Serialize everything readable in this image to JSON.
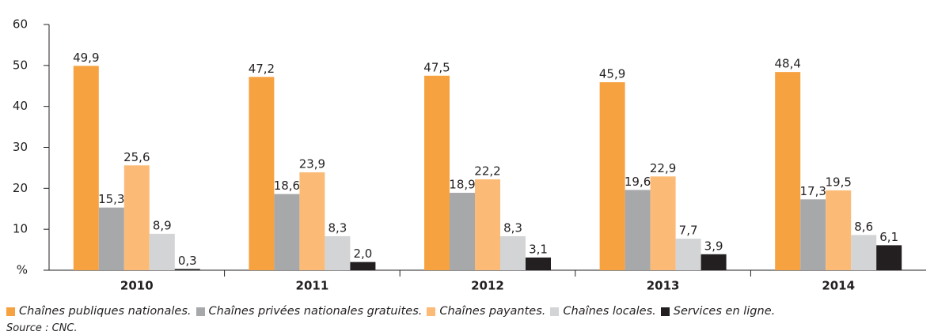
{
  "chart_data": {
    "type": "bar",
    "categories": [
      "2010",
      "2011",
      "2012",
      "2013",
      "2014"
    ],
    "series": [
      {
        "name": "Chaînes publiques nationales.",
        "color": "#f7a241",
        "values": [
          49.9,
          47.2,
          47.5,
          45.9,
          48.4
        ],
        "value_labels": [
          "49,9",
          "47,2",
          "47,5",
          "45,9",
          "48,4"
        ]
      },
      {
        "name": "Chaînes privées nationales gratuites.",
        "color": "#a7a8aa",
        "values": [
          15.3,
          18.6,
          18.9,
          19.6,
          17.3
        ],
        "value_labels": [
          "15,3",
          "18,6",
          "18,9",
          "19,6",
          "17,3"
        ]
      },
      {
        "name": "Chaînes payantes.",
        "color": "#fbbb77",
        "values": [
          25.6,
          23.9,
          22.2,
          22.9,
          19.5
        ],
        "value_labels": [
          "25,6",
          "23,9",
          "22,2",
          "22,9",
          "19,5"
        ]
      },
      {
        "name": "Chaînes locales.",
        "color": "#d3d4d6",
        "values": [
          8.9,
          8.3,
          8.3,
          7.7,
          8.6
        ],
        "value_labels": [
          "8,9",
          "8,3",
          "8,3",
          "7,7",
          "8,6"
        ]
      },
      {
        "name": "Services en ligne.",
        "color": "#231f20",
        "values": [
          0.3,
          2.0,
          3.1,
          3.9,
          6.1
        ],
        "value_labels": [
          "0,3",
          "2,0",
          "3,1",
          "3,9",
          "6,1"
        ]
      }
    ],
    "ylim": [
      0,
      60
    ],
    "yticks": [
      {
        "value": 0,
        "label": "%"
      },
      10,
      20,
      30,
      40,
      50,
      60
    ],
    "source": "Source : CNC."
  }
}
